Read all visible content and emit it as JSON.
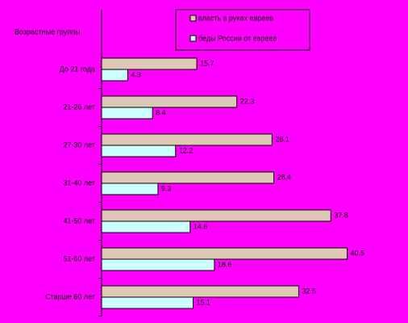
{
  "chart_data": {
    "type": "bar",
    "orientation": "horizontal",
    "y_label": "Возрастные группы",
    "categories": [
      "До 21 года",
      "21-26 лет",
      "27-30 лет",
      "31-40 лет",
      "41-50 лет",
      "51-60 лет",
      "Старше 60 лет"
    ],
    "series": [
      {
        "name": "власть в руках евреев",
        "color": "#e0c8b8",
        "values": [
          15.7,
          22.3,
          28.1,
          28.4,
          37.8,
          40.5,
          32.5
        ]
      },
      {
        "name": "беды России от евреев",
        "color": "#ccffff",
        "values": [
          4.3,
          8.4,
          12.2,
          9.3,
          14.6,
          18.6,
          15.1
        ]
      }
    ],
    "xlim": [
      0,
      50
    ]
  }
}
